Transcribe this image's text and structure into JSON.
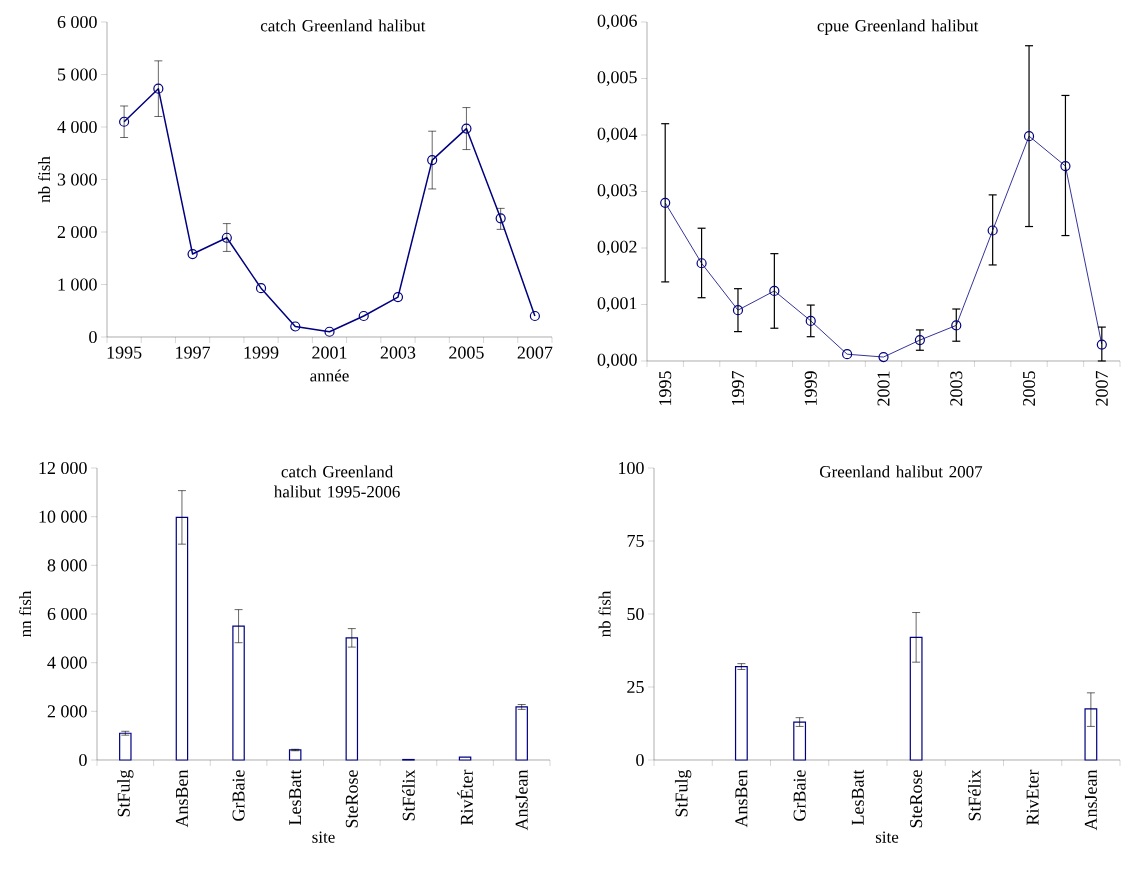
{
  "chart_data": [
    {
      "type": "line",
      "title": "catch Greenland halibut",
      "xlabel": "année",
      "ylabel": "nb fish",
      "color": "#000080",
      "marker": "circle",
      "categories": [
        "1995",
        null,
        "1997",
        null,
        "1999",
        null,
        "2001",
        null,
        "2003",
        null,
        "2005",
        null,
        "2007"
      ],
      "values": [
        4100,
        4730,
        1580,
        1890,
        930,
        200,
        100,
        400,
        760,
        3370,
        3970,
        2260,
        400
      ],
      "errors": [
        [
          3800,
          4400
        ],
        [
          4200,
          5260
        ],
        null,
        [
          1630,
          2160
        ],
        null,
        null,
        null,
        null,
        null,
        [
          2820,
          3920
        ],
        [
          3570,
          4370
        ],
        [
          2050,
          2450
        ],
        null
      ],
      "ylim": [
        0,
        6000
      ],
      "yticks": [
        0,
        {
          "value": 1000,
          "label": "1 000"
        },
        {
          "value": 2000,
          "label": "2 000"
        },
        {
          "value": 3000,
          "label": "3 000"
        },
        {
          "value": 4000,
          "label": "4 000"
        },
        {
          "value": 5000,
          "label": "5 000"
        },
        {
          "value": 6000,
          "label": "6 000"
        }
      ]
    },
    {
      "type": "line",
      "title": "cpue Greenland halibut",
      "color": "#000080",
      "marker": "circle",
      "categories": [
        "1995",
        null,
        "1997",
        null,
        "1999",
        null,
        "2001",
        null,
        "2003",
        null,
        "2005",
        null,
        "2007"
      ],
      "values": [
        0.0028,
        0.00173,
        0.0009,
        0.00124,
        0.00071,
        0.00012,
        7e-05,
        0.00037,
        0.00063,
        0.00231,
        0.00398,
        0.00345,
        0.00029
      ],
      "errors": [
        [
          0.0014,
          0.0042
        ],
        [
          0.00112,
          0.00235
        ],
        [
          0.00052,
          0.00128
        ],
        [
          0.00058,
          0.0019
        ],
        [
          0.00043,
          0.00099
        ],
        null,
        null,
        [
          0.00019,
          0.00055
        ],
        [
          0.00035,
          0.00092
        ],
        [
          0.0017,
          0.00294
        ],
        [
          0.00238,
          0.00558
        ],
        [
          0.00222,
          0.0047
        ],
        [
          0.0,
          0.0006
        ]
      ],
      "ylim": [
        0,
        0.006
      ],
      "yticks": [
        {
          "value": 0,
          "label": "0,000"
        },
        {
          "value": 0.001,
          "label": "0,001"
        },
        {
          "value": 0.002,
          "label": "0,002"
        },
        {
          "value": 0.003,
          "label": "0,003"
        },
        {
          "value": 0.004,
          "label": "0,004"
        },
        {
          "value": 0.005,
          "label": "0,005"
        },
        {
          "value": 0.006,
          "label": "0,006"
        }
      ]
    },
    {
      "type": "bar",
      "title": "catch Greenland halibut 1995-2006",
      "xlabel": "site",
      "ylabel": "nn fish",
      "color": "#000080",
      "categories": [
        "StFulg",
        "AnsBen",
        "GrBaie",
        "LesBatt",
        "SteRose",
        "StFélix",
        "RivÉter",
        "AnsJean"
      ],
      "values": [
        1100,
        9970,
        5500,
        420,
        5020,
        20,
        120,
        2180
      ],
      "errors": [
        [
          1020,
          1180
        ],
        [
          8870,
          11070
        ],
        [
          4820,
          6180
        ],
        [
          380,
          440
        ],
        [
          4640,
          5400
        ],
        null,
        null,
        [
          2080,
          2280
        ]
      ],
      "ylim": [
        0,
        12000
      ],
      "yticks": [
        0,
        {
          "value": 2000,
          "label": "2 000"
        },
        {
          "value": 4000,
          "label": "4 000"
        },
        {
          "value": 6000,
          "label": "6 000"
        },
        {
          "value": 8000,
          "label": "8 000"
        },
        {
          "value": 10000,
          "label": "10 000"
        },
        {
          "value": 12000,
          "label": "12 000"
        }
      ]
    },
    {
      "type": "bar",
      "title": "Greenland halibut 2007",
      "xlabel": "site",
      "ylabel": "nb fish",
      "color": "#000080",
      "categories": [
        "StFulg",
        "AnsBen",
        "GrBaie",
        "LesBatt",
        "SteRose",
        "StFélix",
        "RivEter",
        "AnsJean"
      ],
      "values": [
        null,
        32,
        13,
        null,
        42,
        null,
        null,
        17.5
      ],
      "errors": [
        null,
        [
          31,
          33
        ],
        [
          11.5,
          14.5
        ],
        null,
        [
          33.5,
          50.5
        ],
        null,
        null,
        [
          11.5,
          23
        ]
      ],
      "ylim": [
        0,
        100
      ],
      "yticks": [
        0,
        25,
        50,
        75,
        100
      ]
    }
  ]
}
